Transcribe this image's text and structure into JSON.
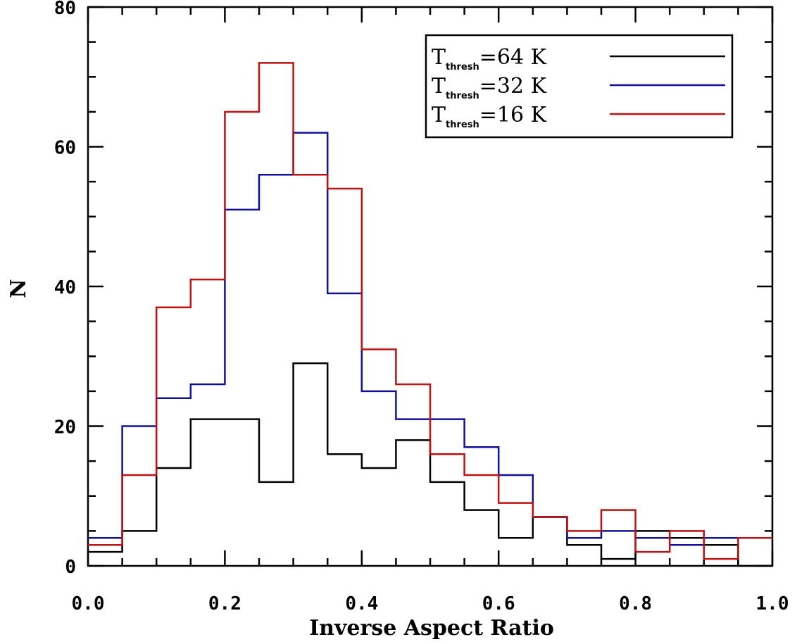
{
  "chart_data": {
    "type": "line",
    "xlabel": "Inverse Aspect Ratio",
    "ylabel": "N",
    "xlim": [
      0.0,
      1.0
    ],
    "ylim": [
      0,
      80
    ],
    "x_ticks": [
      "0.0",
      "0.2",
      "0.4",
      "0.6",
      "0.8",
      "1.0"
    ],
    "y_ticks": [
      "0",
      "20",
      "40",
      "60",
      "80"
    ],
    "bin_edges": [
      0.0,
      0.05,
      0.1,
      0.15,
      0.2,
      0.25,
      0.3,
      0.35,
      0.4,
      0.45,
      0.5,
      0.55,
      0.6,
      0.65,
      0.7,
      0.75,
      0.8,
      0.85,
      0.9,
      0.95,
      1.0
    ],
    "legend_position": "top-right",
    "series": [
      {
        "name": "T_thresh=64 K",
        "legend_main": "T",
        "legend_sub": "thresh",
        "legend_value": "=64 K",
        "color": "#000000",
        "values": [
          2,
          5,
          14,
          21,
          21,
          12,
          29,
          16,
          14,
          18,
          12,
          8,
          4,
          7,
          3,
          1,
          5,
          4,
          3,
          0
        ]
      },
      {
        "name": "T_thresh=32 K",
        "legend_main": "T",
        "legend_sub": "thresh",
        "legend_value": "=32 K",
        "color": "#1010a0",
        "values": [
          4,
          20,
          24,
          26,
          51,
          56,
          62,
          39,
          25,
          21,
          21,
          17,
          13,
          7,
          4,
          5,
          4,
          3,
          4,
          4
        ]
      },
      {
        "name": "T_thresh=16 K",
        "legend_main": "T",
        "legend_sub": "thresh",
        "legend_value": "=16 K",
        "color": "#c01010",
        "values": [
          3,
          13,
          37,
          41,
          65,
          72,
          56,
          54,
          31,
          26,
          16,
          13,
          9,
          7,
          5,
          8,
          2,
          5,
          1,
          4
        ]
      }
    ],
    "grid": false
  }
}
